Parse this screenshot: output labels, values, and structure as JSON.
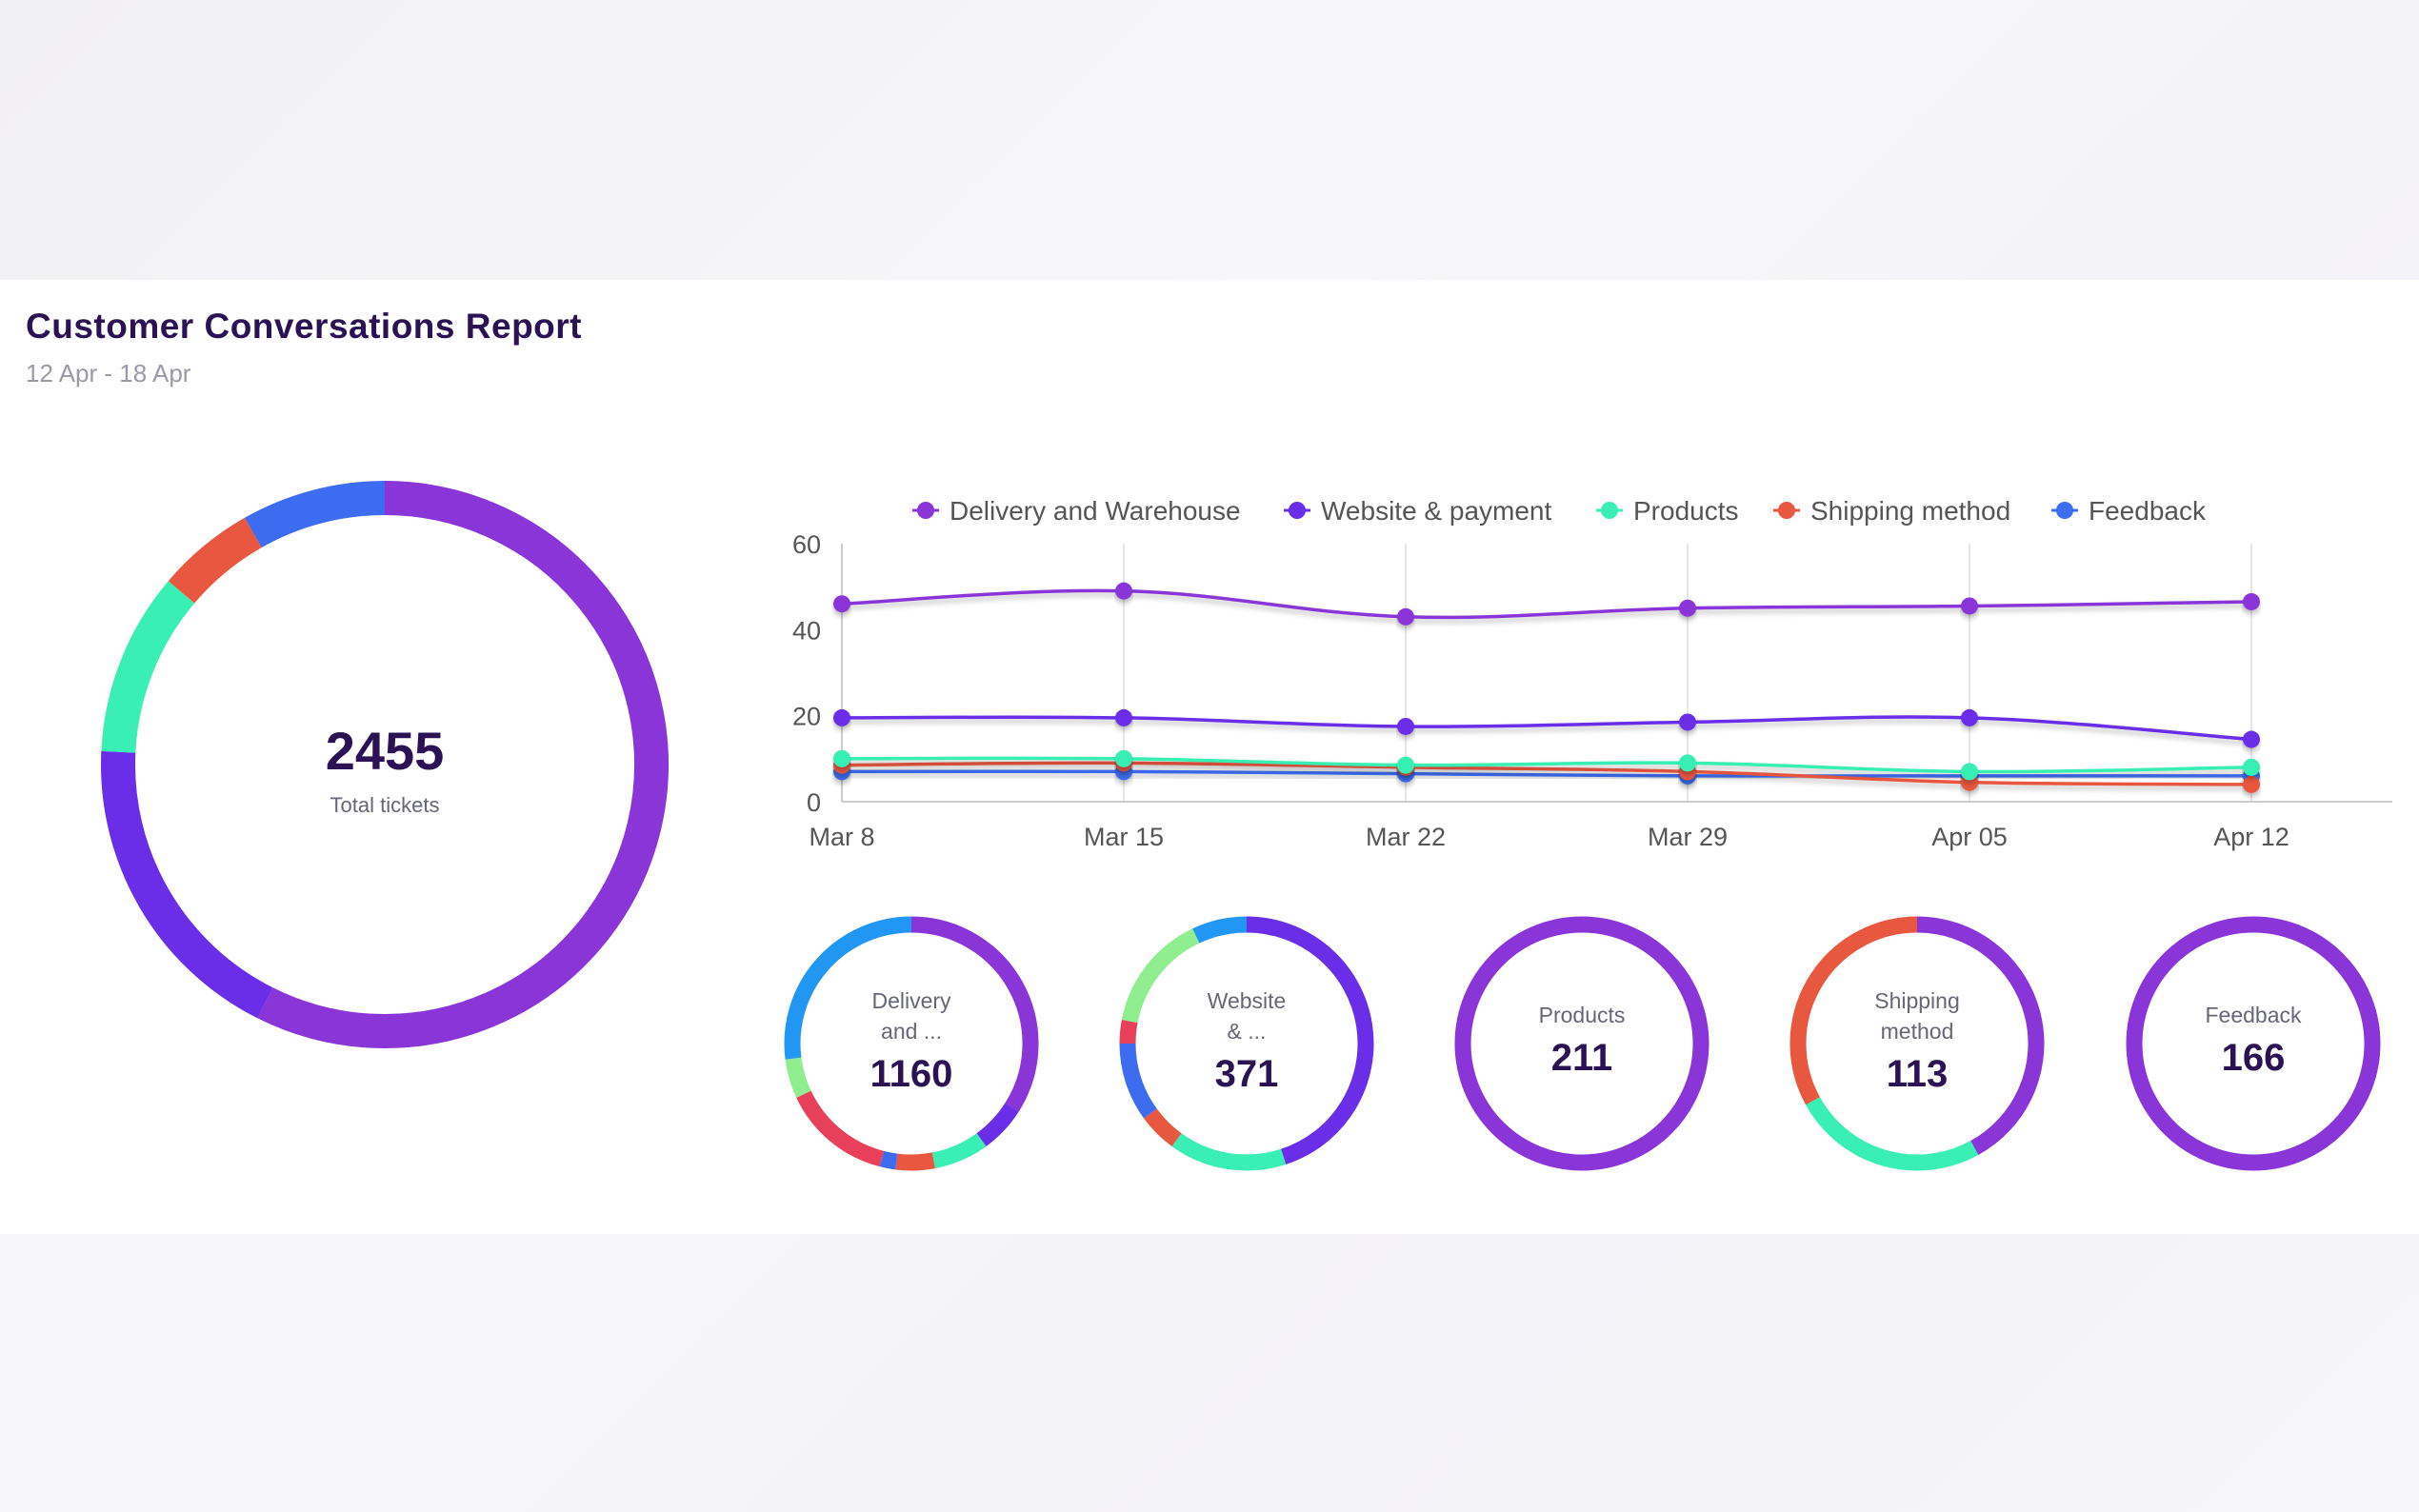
{
  "header": {
    "title": "Customer Conversations Report",
    "date_range": "12 Apr - 18 Apr"
  },
  "total": {
    "value": "2455",
    "label": "Total tickets",
    "segments": [
      {
        "name": "Delivery and Warehouse",
        "value": 1160,
        "color": "#8a35d8"
      },
      {
        "name": "Website & payment",
        "value": 371,
        "color": "#6a2ee8"
      },
      {
        "name": "Products",
        "value": 211,
        "color": "#39efb3"
      },
      {
        "name": "Shipping method",
        "value": 113,
        "color": "#e8573f"
      },
      {
        "name": "Feedback",
        "value": 166,
        "color": "#3e6cf0"
      }
    ]
  },
  "colors": {
    "delivery": "#8a35d8",
    "website": "#6a2ee8",
    "products": "#39efb3",
    "shipping": "#e8573f",
    "feedback": "#3e6cf0"
  },
  "chart_data": {
    "type": "line",
    "x": [
      "Mar 8",
      "Mar 15",
      "Mar 22",
      "Mar 29",
      "Apr 05",
      "Apr 12"
    ],
    "ylim": [
      0,
      60
    ],
    "yticks": [
      "0",
      "20",
      "40",
      "60"
    ],
    "grid": "vertical",
    "legend_position": "top",
    "series": [
      {
        "name": "Delivery and Warehouse",
        "values": [
          46,
          49,
          43,
          45,
          45.5,
          46.5
        ],
        "color": "#8a35d8"
      },
      {
        "name": "Website & payment",
        "values": [
          19.5,
          19.5,
          17.5,
          18.5,
          19.5,
          14.5
        ],
        "color": "#6a2ee8"
      },
      {
        "name": "Products",
        "values": [
          10,
          10,
          8.5,
          9,
          7,
          8
        ],
        "color": "#39efb3"
      },
      {
        "name": "Shipping method",
        "values": [
          8.5,
          9,
          8,
          7,
          4.5,
          4
        ],
        "color": "#e8573f"
      },
      {
        "name": "Feedback",
        "values": [
          7,
          7,
          6.5,
          6,
          6,
          6
        ],
        "color": "#3e6cf0"
      }
    ]
  },
  "categories": [
    {
      "label_lines": [
        "Delivery",
        "and ..."
      ],
      "value": "1160",
      "segments": [
        {
          "value": 34,
          "color": "#8a35d8"
        },
        {
          "value": 6,
          "color": "#6a2ee8"
        },
        {
          "value": 7,
          "color": "#39efb3"
        },
        {
          "value": 5,
          "color": "#e8573f"
        },
        {
          "value": 2,
          "color": "#3e6cf0"
        },
        {
          "value": 14,
          "color": "#e8405a"
        },
        {
          "value": 5,
          "color": "#90ee90"
        },
        {
          "value": 27,
          "color": "#2196f3"
        }
      ]
    },
    {
      "label_lines": [
        "Website",
        "& ..."
      ],
      "value": "371",
      "segments": [
        {
          "value": 45,
          "color": "#6a2ee8"
        },
        {
          "value": 15,
          "color": "#39efb3"
        },
        {
          "value": 5,
          "color": "#e8573f"
        },
        {
          "value": 10,
          "color": "#3e6cf0"
        },
        {
          "value": 3,
          "color": "#e8405a"
        },
        {
          "value": 15,
          "color": "#90ee90"
        },
        {
          "value": 7,
          "color": "#2196f3"
        }
      ]
    },
    {
      "label_lines": [
        "Products"
      ],
      "value": "211",
      "segments": [
        {
          "value": 100,
          "color": "#8a35d8"
        }
      ]
    },
    {
      "label_lines": [
        "Shipping",
        "method"
      ],
      "value": "113",
      "segments": [
        {
          "value": 42,
          "color": "#8a35d8"
        },
        {
          "value": 25,
          "color": "#39efb3"
        },
        {
          "value": 33,
          "color": "#e8573f"
        }
      ]
    },
    {
      "label_lines": [
        "Feedback"
      ],
      "value": "166",
      "segments": [
        {
          "value": 100,
          "color": "#8a35d8"
        }
      ]
    }
  ]
}
